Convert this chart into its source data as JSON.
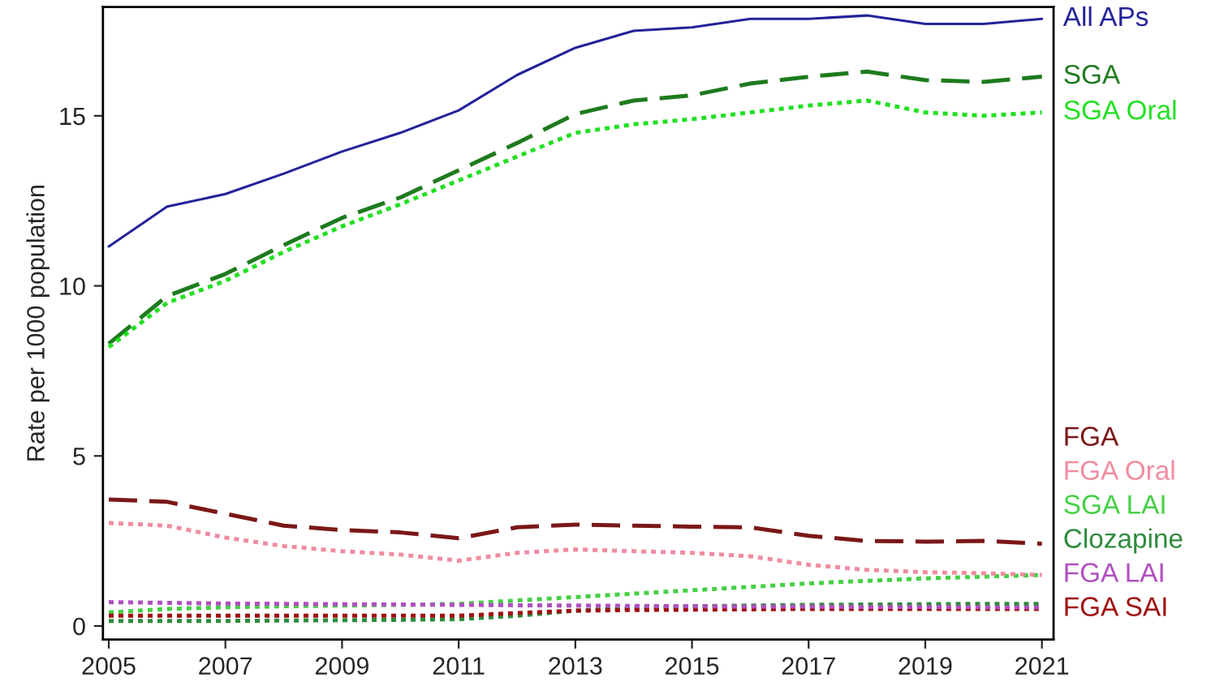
{
  "chart_data": {
    "type": "line",
    "ylabel": "Rate per 1000 population",
    "x": [
      2005,
      2006,
      2007,
      2008,
      2009,
      2010,
      2011,
      2012,
      2013,
      2014,
      2015,
      2016,
      2017,
      2018,
      2019,
      2020,
      2021
    ],
    "xlim": [
      2004.9,
      2021.2
    ],
    "xticks": [
      2005,
      2007,
      2009,
      2011,
      2013,
      2015,
      2017,
      2019,
      2021
    ],
    "ylim": [
      -0.4,
      18.2
    ],
    "yticks": [
      0,
      5,
      10,
      15
    ],
    "grid": false,
    "legend": false,
    "marker": "none",
    "series": [
      {
        "name": "All APs",
        "color": "#23239a",
        "line_style": "solid",
        "values": [
          11.16,
          12.33,
          12.7,
          13.3,
          13.95,
          14.5,
          15.16,
          16.2,
          17.0,
          17.5,
          17.6,
          17.85,
          17.85,
          17.95,
          17.7,
          17.7,
          17.85
        ]
      },
      {
        "name": "SGA",
        "color": "#1e7b1e",
        "line_style": "dashed",
        "values": [
          8.3,
          9.7,
          10.35,
          11.2,
          12.0,
          12.6,
          13.4,
          14.2,
          15.05,
          15.45,
          15.6,
          15.95,
          16.15,
          16.3,
          16.05,
          16.0,
          16.15
        ]
      },
      {
        "name": "SGA Oral",
        "color": "#22e022",
        "line_style": "dotted",
        "values": [
          8.2,
          9.5,
          10.15,
          11.0,
          11.75,
          12.4,
          13.1,
          13.8,
          14.5,
          14.75,
          14.9,
          15.1,
          15.3,
          15.45,
          15.1,
          15.0,
          15.1
        ]
      },
      {
        "name": "FGA",
        "color": "#7b1717",
        "line_style": "dashed",
        "values": [
          3.72,
          3.65,
          3.3,
          2.95,
          2.82,
          2.75,
          2.58,
          2.9,
          2.98,
          2.95,
          2.92,
          2.9,
          2.65,
          2.5,
          2.48,
          2.5,
          2.42
        ]
      },
      {
        "name": "SGA LAI",
        "color": "#44d044",
        "line_style": "dotted",
        "values": [
          0.4,
          0.5,
          0.55,
          0.58,
          0.6,
          0.62,
          0.65,
          0.75,
          0.85,
          0.95,
          1.05,
          1.15,
          1.25,
          1.33,
          1.4,
          1.45,
          1.5
        ]
      },
      {
        "name": "FGA Oral",
        "color": "#f08ca0",
        "line_style": "dotted",
        "values": [
          3.03,
          2.95,
          2.6,
          2.35,
          2.2,
          2.1,
          1.92,
          2.15,
          2.25,
          2.2,
          2.15,
          2.05,
          1.8,
          1.65,
          1.58,
          1.55,
          1.5
        ]
      },
      {
        "name": "Clozapine",
        "color": "#2e8b3e",
        "line_style": "dotted",
        "values": [
          0.15,
          0.15,
          0.15,
          0.16,
          0.17,
          0.18,
          0.2,
          0.3,
          0.45,
          0.52,
          0.58,
          0.6,
          0.62,
          0.63,
          0.64,
          0.65,
          0.65
        ]
      },
      {
        "name": "FGA SAI",
        "color": "#a01010",
        "line_style": "dotted",
        "values": [
          0.3,
          0.3,
          0.3,
          0.3,
          0.3,
          0.3,
          0.3,
          0.38,
          0.45,
          0.47,
          0.48,
          0.49,
          0.5,
          0.5,
          0.5,
          0.5,
          0.5
        ]
      },
      {
        "name": "FGA LAI",
        "color": "#b050c0",
        "line_style": "dotted",
        "values": [
          0.7,
          0.68,
          0.66,
          0.65,
          0.64,
          0.63,
          0.62,
          0.61,
          0.6,
          0.59,
          0.58,
          0.57,
          0.57,
          0.56,
          0.56,
          0.55,
          0.55
        ]
      }
    ]
  }
}
